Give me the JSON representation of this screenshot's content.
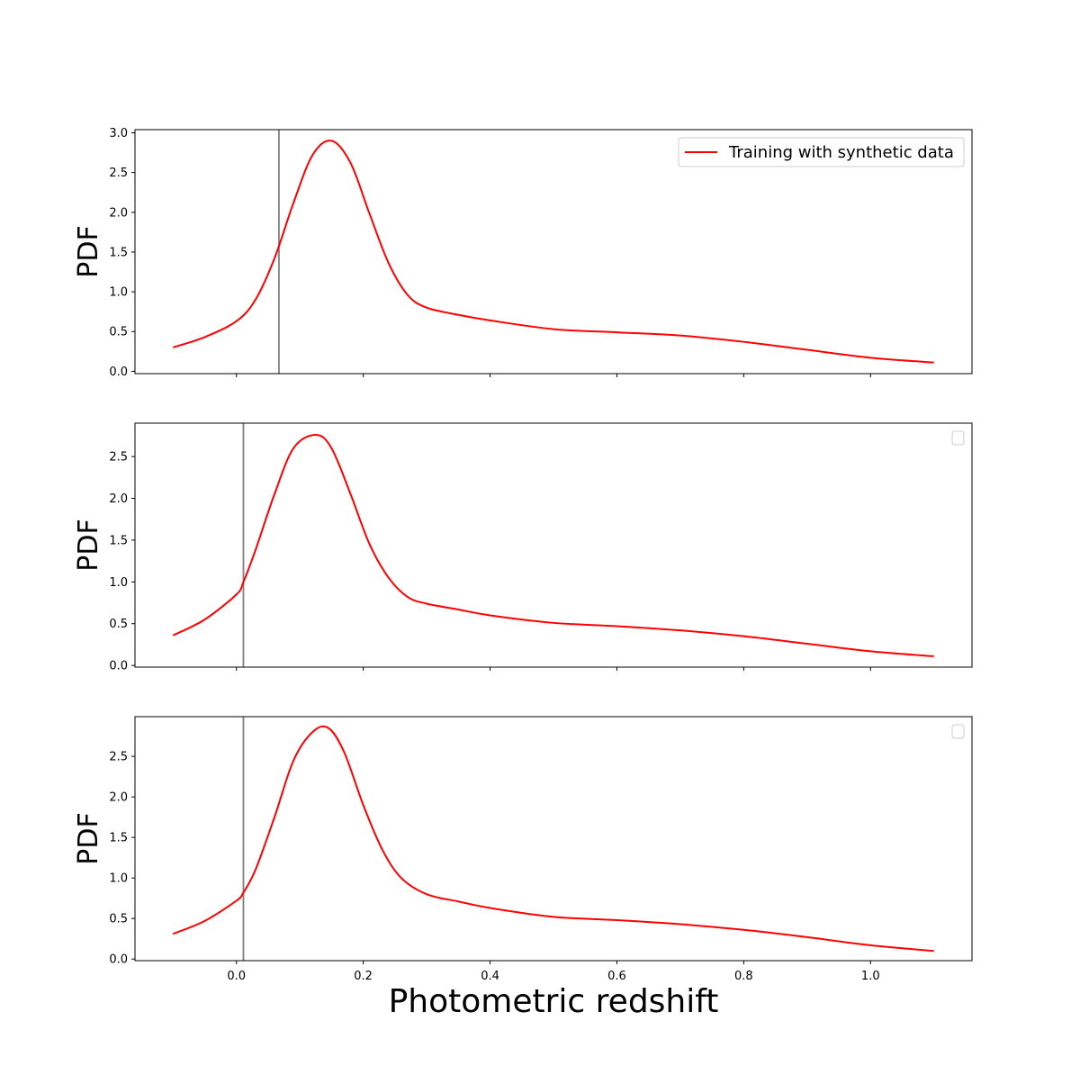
{
  "chart_data": [
    {
      "type": "line",
      "ylabel": "PDF",
      "xlabel": "",
      "xlim": [
        -0.16,
        1.16
      ],
      "ylim": [
        -0.03,
        3.04
      ],
      "xticks": [
        "0.0",
        "0.2",
        "0.4",
        "0.6",
        "0.8",
        "1.0"
      ],
      "yticks": [
        "0.0",
        "0.5",
        "1.0",
        "1.5",
        "2.0",
        "2.5",
        "3.0"
      ],
      "vline_x": 0.067,
      "series": [
        {
          "name": "Training with synthetic data",
          "color": "#ff0000",
          "x": [
            -0.1,
            -0.05,
            0.0,
            0.03,
            0.06,
            0.09,
            0.12,
            0.15,
            0.18,
            0.21,
            0.24,
            0.27,
            0.3,
            0.35,
            0.4,
            0.5,
            0.6,
            0.7,
            0.8,
            0.9,
            1.0,
            1.1
          ],
          "values": [
            0.3,
            0.43,
            0.63,
            0.9,
            1.42,
            2.12,
            2.72,
            2.9,
            2.62,
            1.98,
            1.36,
            0.96,
            0.8,
            0.71,
            0.64,
            0.53,
            0.49,
            0.45,
            0.37,
            0.27,
            0.17,
            0.11
          ]
        }
      ],
      "legend": {
        "show": true,
        "location": "top-right",
        "entries": [
          "Training with synthetic data"
        ]
      }
    },
    {
      "type": "line",
      "ylabel": "PDF",
      "xlabel": "",
      "xlim": [
        -0.16,
        1.16
      ],
      "ylim": [
        -0.02,
        2.9
      ],
      "xticks": [
        "0.0",
        "0.2",
        "0.4",
        "0.6",
        "0.8",
        "1.0"
      ],
      "yticks": [
        "0.0",
        "0.5",
        "1.0",
        "1.5",
        "2.0",
        "2.5"
      ],
      "vline_x": 0.011,
      "series": [
        {
          "name": "",
          "color": "#ff0000",
          "x": [
            -0.1,
            -0.05,
            0.0,
            0.011,
            0.03,
            0.06,
            0.09,
            0.125,
            0.15,
            0.18,
            0.21,
            0.24,
            0.27,
            0.3,
            0.35,
            0.4,
            0.5,
            0.6,
            0.7,
            0.8,
            0.9,
            1.0,
            1.1
          ],
          "values": [
            0.36,
            0.55,
            0.85,
            1.0,
            1.38,
            2.05,
            2.6,
            2.76,
            2.6,
            2.05,
            1.45,
            1.05,
            0.82,
            0.74,
            0.67,
            0.6,
            0.51,
            0.47,
            0.42,
            0.35,
            0.26,
            0.17,
            0.11
          ]
        }
      ],
      "legend": {
        "show": true,
        "location": "top-right",
        "entries": []
      }
    },
    {
      "type": "line",
      "ylabel": "PDF",
      "xlabel": "Photometric redshift",
      "xlim": [
        -0.16,
        1.16
      ],
      "ylim": [
        -0.02,
        2.99
      ],
      "xticks": [
        "0.0",
        "0.2",
        "0.4",
        "0.6",
        "0.8",
        "1.0"
      ],
      "yticks": [
        "0.0",
        "0.5",
        "1.0",
        "1.5",
        "2.0",
        "2.5"
      ],
      "vline_x": 0.011,
      "series": [
        {
          "name": "",
          "color": "#ff0000",
          "x": [
            -0.1,
            -0.05,
            0.0,
            0.011,
            0.03,
            0.06,
            0.09,
            0.12,
            0.145,
            0.17,
            0.2,
            0.23,
            0.26,
            0.3,
            0.35,
            0.4,
            0.5,
            0.6,
            0.7,
            0.8,
            0.9,
            1.0,
            1.1
          ],
          "values": [
            0.31,
            0.47,
            0.72,
            0.82,
            1.1,
            1.75,
            2.45,
            2.8,
            2.85,
            2.55,
            1.9,
            1.35,
            1.0,
            0.8,
            0.71,
            0.63,
            0.52,
            0.48,
            0.43,
            0.36,
            0.27,
            0.17,
            0.1
          ]
        }
      ],
      "legend": {
        "show": true,
        "location": "top-right",
        "entries": []
      }
    }
  ]
}
